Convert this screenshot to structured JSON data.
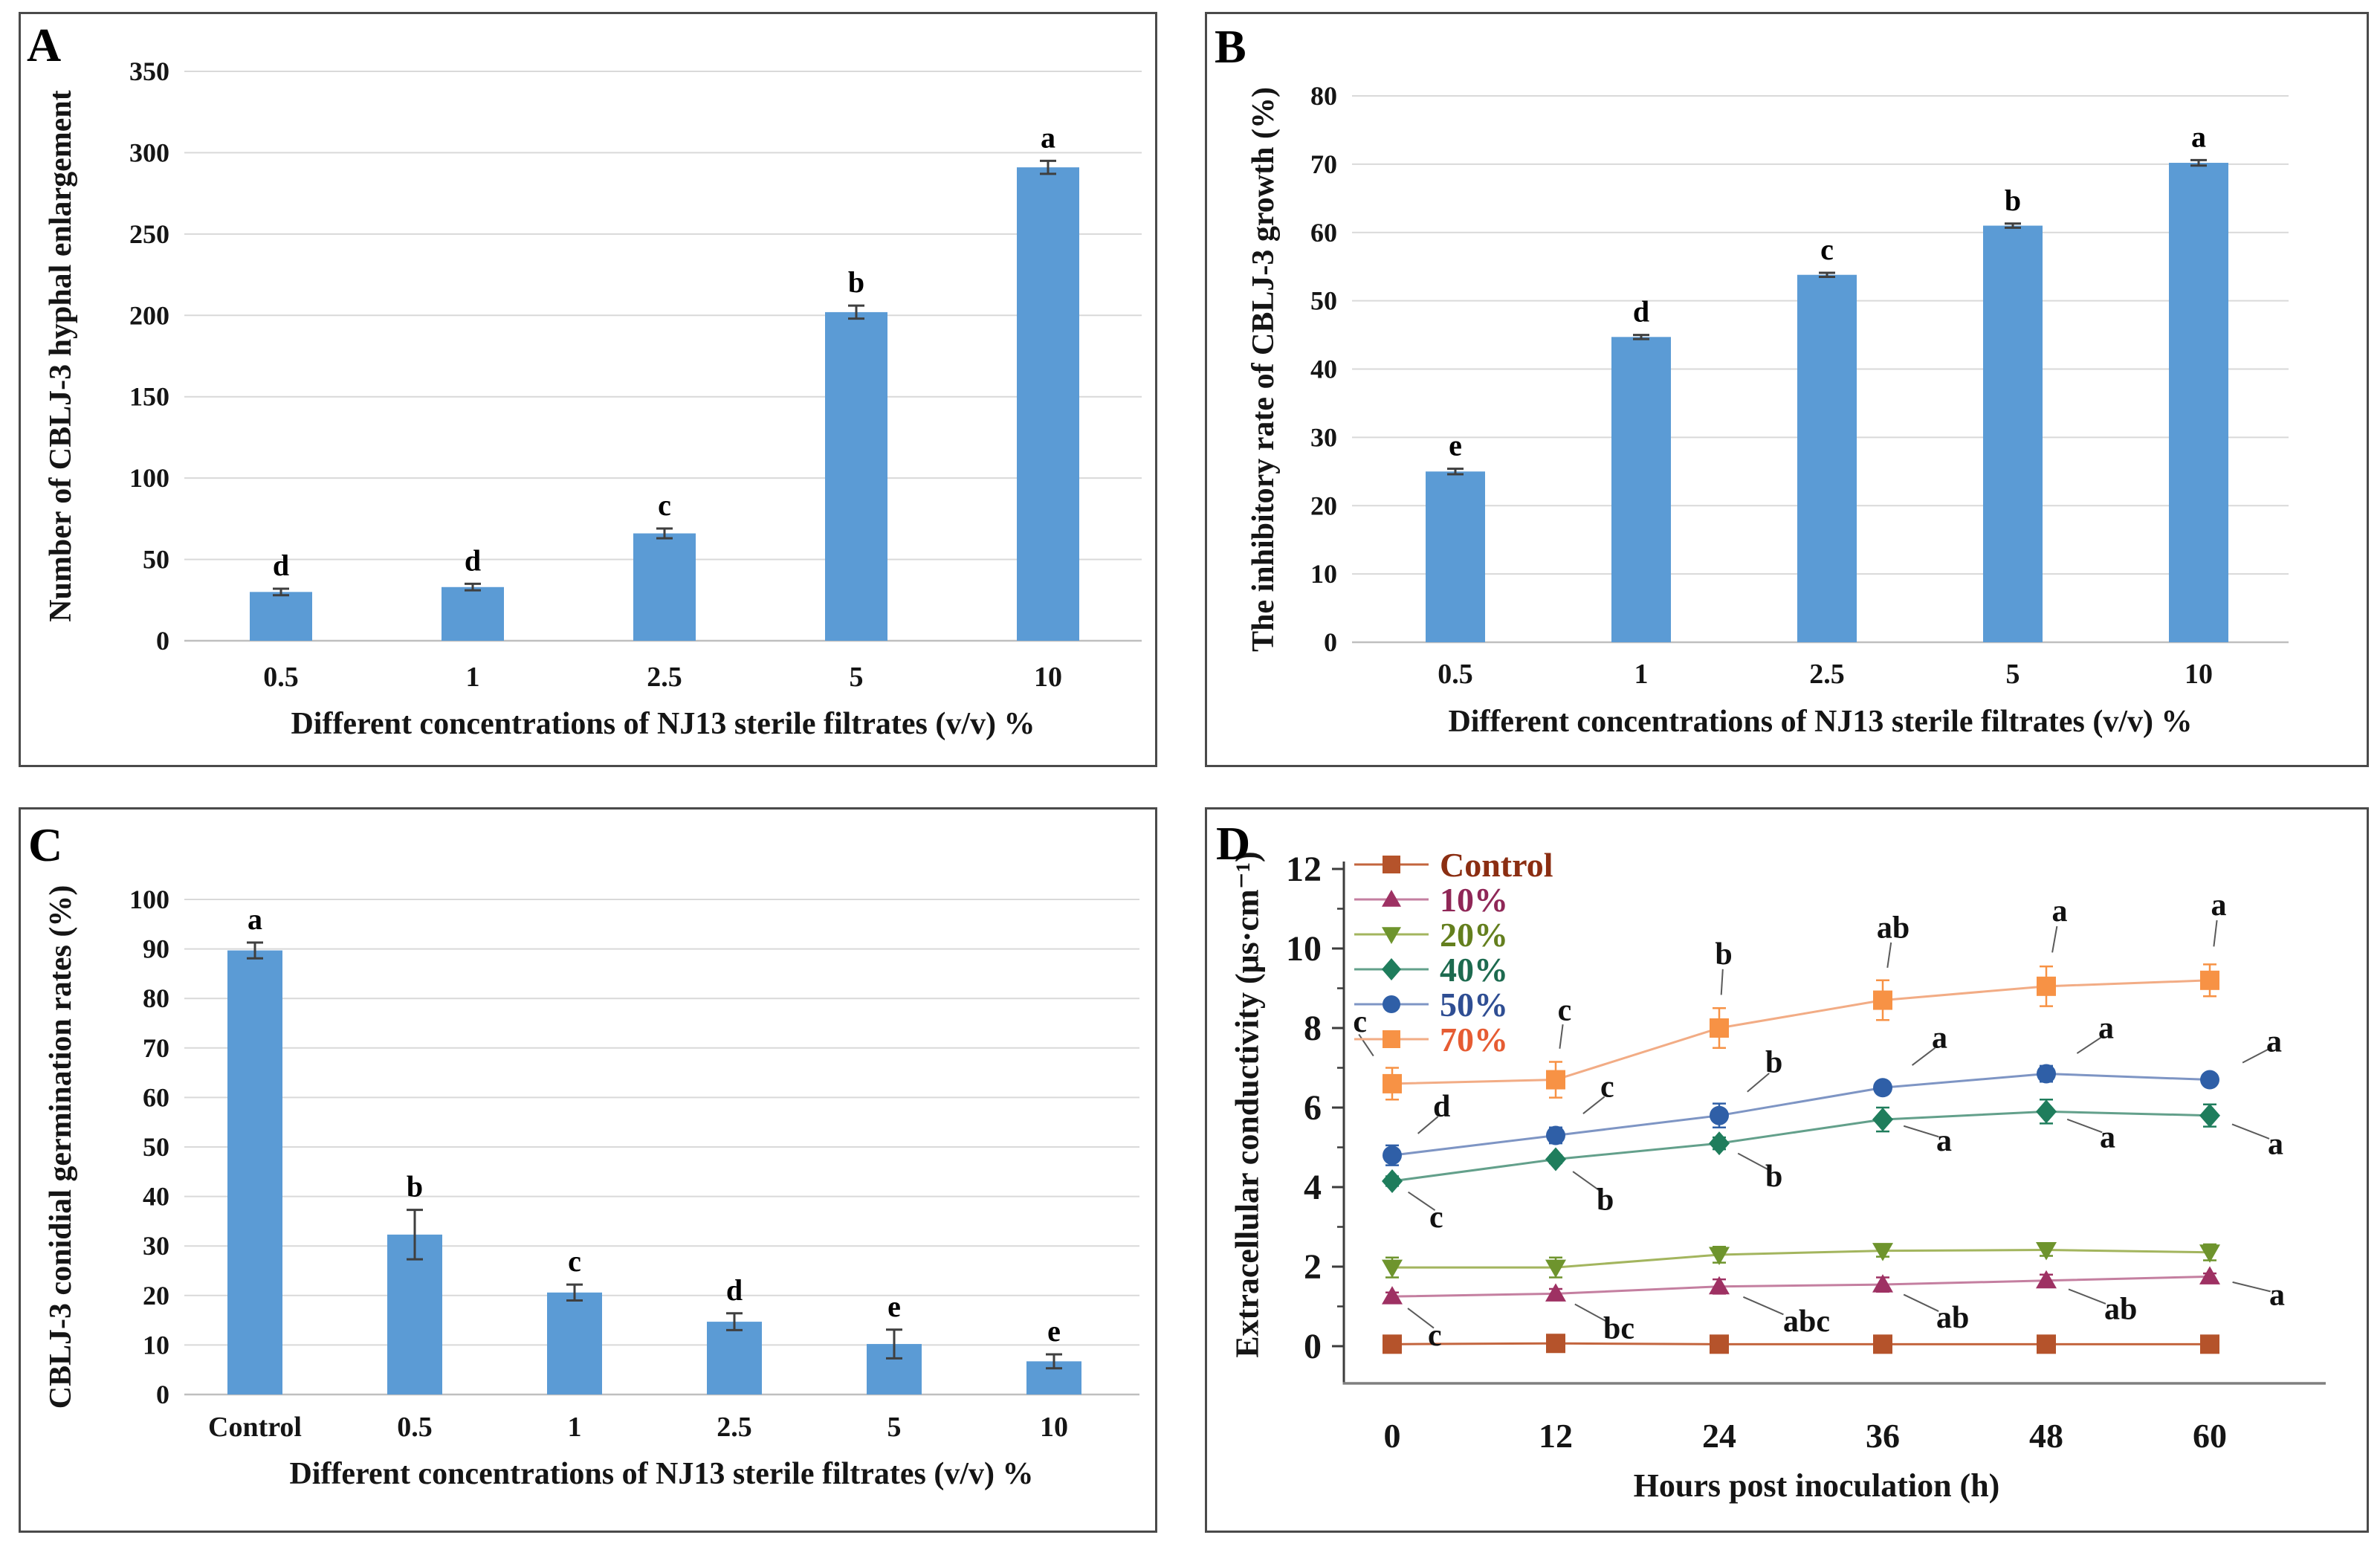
{
  "chart_data": [
    {
      "type": "bar",
      "panel_label": "A",
      "title": "",
      "ylabel": "Number of CBLJ-3 hyphal enlargement",
      "xlabel": "Different concentrations of NJ13 sterile filtrates (v/v) %",
      "categories": [
        "0.5",
        "1",
        "2.5",
        "5",
        "10"
      ],
      "values": [
        30,
        33,
        66,
        202,
        291
      ],
      "errors": [
        2,
        2,
        3,
        4,
        4
      ],
      "sig_letters": [
        "d",
        "d",
        "c",
        "b",
        "a"
      ],
      "ylim": [
        0,
        350
      ],
      "yticks": [
        0,
        50,
        100,
        150,
        200,
        250,
        300,
        350
      ],
      "grid": "on",
      "legend_position": "none",
      "bar_color": "#5B9BD5"
    },
    {
      "type": "bar",
      "panel_label": "B",
      "title": "",
      "ylabel": "The inhibitory rate of  CBLJ-3 growth (%)",
      "xlabel": "Different concentrations of NJ13 sterile filtrates (v/v) %",
      "categories": [
        "0.5",
        "1",
        "2.5",
        "5",
        "10"
      ],
      "values": [
        25,
        44.7,
        53.8,
        61,
        70.2
      ],
      "errors": [
        0.4,
        0.3,
        0.3,
        0.3,
        0.4
      ],
      "sig_letters": [
        "e",
        "d",
        "c",
        "b",
        "a"
      ],
      "ylim": [
        0,
        80
      ],
      "yticks": [
        0,
        10,
        20,
        30,
        40,
        50,
        60,
        70,
        80
      ],
      "grid": "on",
      "legend_position": "none",
      "bar_color": "#5B9BD5"
    },
    {
      "type": "bar",
      "panel_label": "C",
      "title": "",
      "ylabel": "CBLJ-3 conidial germination rates (%)",
      "xlabel": "Different concentrations of NJ13 sterile filtrates (v/v) %",
      "categories": [
        "Control",
        "0.5",
        "1",
        "2.5",
        "5",
        "10"
      ],
      "values": [
        89.7,
        32.3,
        20.6,
        14.7,
        10.2,
        6.7
      ],
      "errors": [
        1.6,
        5,
        1.6,
        1.7,
        2.9,
        1.4
      ],
      "sig_letters": [
        "a",
        "b",
        "c",
        "d",
        "e",
        "e"
      ],
      "ylim": [
        0,
        100
      ],
      "yticks": [
        0,
        10,
        20,
        30,
        40,
        50,
        60,
        70,
        80,
        90,
        100
      ],
      "grid": "on",
      "legend_position": "none",
      "bar_color": "#5B9BD5"
    },
    {
      "type": "line",
      "panel_label": "D",
      "title": "",
      "ylabel": "Extracellular conductivity (μs·cm⁻¹)",
      "xlabel": "Hours post inoculation (h)",
      "x": [
        0,
        12,
        24,
        36,
        48,
        60
      ],
      "xtick_labels": [
        "0",
        "12",
        "24",
        "36",
        "48",
        "60"
      ],
      "ylim": [
        0,
        12
      ],
      "yticks_major": [
        0,
        2,
        4,
        6,
        8,
        10,
        12
      ],
      "yticks_minor": [
        1,
        3,
        5,
        7,
        9,
        11
      ],
      "grid": "off",
      "legend_position": "top-left",
      "series": [
        {
          "name": "Control",
          "marker": "square",
          "color": "#B5532B",
          "line_color": "#C3653E",
          "text_color": "#8B2E12",
          "values": [
            0.05,
            0.07,
            0.05,
            0.05,
            0.05,
            0.05
          ],
          "errors": [
            0,
            0,
            0,
            0,
            0,
            0
          ],
          "letters": [
            "",
            "",
            "",
            "",
            "",
            ""
          ],
          "letter_offsets": []
        },
        {
          "name": "10%",
          "marker": "triangle-up",
          "color": "#9E3163",
          "line_color": "#C47FA0",
          "text_color": "#8F2757",
          "values": [
            1.25,
            1.32,
            1.5,
            1.55,
            1.65,
            1.75
          ],
          "errors": [
            0.1,
            0.12,
            0.18,
            0.18,
            0.15,
            0.08
          ],
          "letters": [
            "c",
            "bc",
            "abc",
            "ab",
            "ab",
            "a"
          ],
          "letter_offsets": [
            [
              48,
              66
            ],
            [
              64,
              60
            ],
            [
              86,
              60
            ],
            [
              72,
              58
            ],
            [
              78,
              52
            ],
            [
              80,
              38
            ]
          ]
        },
        {
          "name": "20%",
          "marker": "triangle-down",
          "color": "#6E942D",
          "line_color": "#A3B55E",
          "text_color": "#647F1E",
          "values": [
            1.98,
            1.98,
            2.3,
            2.4,
            2.42,
            2.36
          ],
          "errors": [
            0.25,
            0.25,
            0.2,
            0.15,
            0.15,
            0.2
          ],
          "letters": [
            "",
            "",
            "",
            "",
            "",
            ""
          ],
          "letter_offsets": []
        },
        {
          "name": "40%",
          "marker": "diamond",
          "color": "#1F7D5C",
          "line_color": "#63A08B",
          "text_color": "#1D6A4F",
          "values": [
            4.15,
            4.7,
            5.1,
            5.7,
            5.9,
            5.8
          ],
          "errors": [
            0.12,
            0.1,
            0.15,
            0.3,
            0.3,
            0.28
          ],
          "letters": [
            "c",
            "b",
            "b",
            "a",
            "a",
            "a"
          ],
          "letter_offsets": [
            [
              50,
              62
            ],
            [
              55,
              68
            ],
            [
              62,
              58
            ],
            [
              72,
              42
            ],
            [
              72,
              48
            ],
            [
              78,
              52
            ]
          ]
        },
        {
          "name": "50%",
          "marker": "circle",
          "color": "#2F5FA7",
          "line_color": "#7E95C4",
          "text_color": "#2F4E93",
          "values": [
            4.8,
            5.3,
            5.8,
            6.5,
            6.85,
            6.7
          ],
          "errors": [
            0.25,
            0.2,
            0.3,
            0.15,
            0.2,
            0.15
          ],
          "letters": [
            "d",
            "c",
            "b",
            "a",
            "a",
            "a"
          ],
          "letter_offsets": [
            [
              55,
              -52
            ],
            [
              60,
              -52
            ],
            [
              62,
              -58
            ],
            [
              66,
              -54
            ],
            [
              70,
              -48
            ],
            [
              76,
              -38
            ]
          ]
        },
        {
          "name": "70%",
          "marker": "square",
          "color": "#F79245",
          "line_color": "#F2AC85",
          "text_color": "#E65C33",
          "values": [
            6.6,
            6.7,
            8.0,
            8.7,
            9.05,
            9.2
          ],
          "errors": [
            0.4,
            0.45,
            0.5,
            0.5,
            0.5,
            0.4
          ],
          "letters": [
            "c",
            "c",
            "b",
            "ab",
            "a",
            "a"
          ],
          "letter_offsets": [
            [
              -34,
              -70
            ],
            [
              12,
              -80
            ],
            [
              6,
              -86
            ],
            [
              14,
              -84
            ],
            [
              18,
              -88
            ],
            [
              12,
              -88
            ]
          ]
        }
      ],
      "legend_items": [
        "Control",
        "10%",
        "20%",
        "40%",
        "50%",
        "70%"
      ]
    }
  ]
}
